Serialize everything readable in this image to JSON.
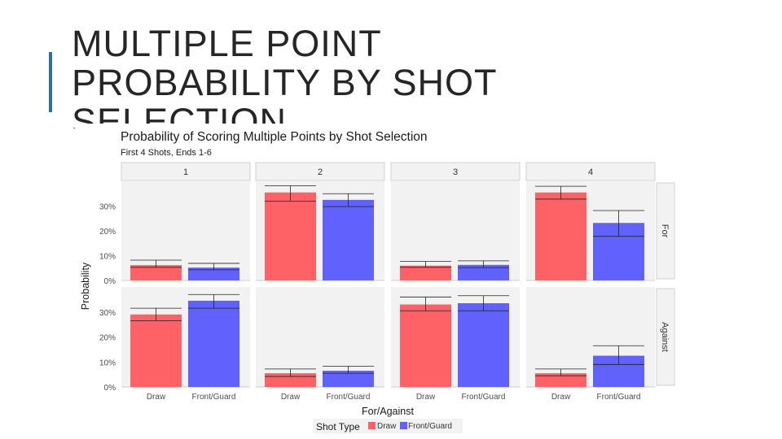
{
  "slide": {
    "title": "MULTIPLE POINT PROBABILITY BY SHOT SELECTION"
  },
  "colors": {
    "accent": "#2a6fa8",
    "draw": "#fe6266",
    "front_guard": "#6161fd",
    "panel_bg": "#f2f2f2",
    "strip_bg": "#f2f2f2"
  },
  "chart_data": {
    "type": "bar",
    "title": "Probability of Scoring Multiple Points by Shot Selection",
    "subtitle": "First 4 Shots, Ends 1-6",
    "xlabel": "For/Against",
    "ylabel": "Probability",
    "ylim": [
      0,
      0.4
    ],
    "y_ticks": [
      "0%",
      "10%",
      "20%",
      "30%"
    ],
    "categories": [
      "Draw",
      "Front/Guard"
    ],
    "facet_columns": [
      "1",
      "2",
      "3",
      "4"
    ],
    "facet_rows": [
      "For",
      "Against"
    ],
    "legend": {
      "title": "Shot Type",
      "position": "bottom",
      "entries": [
        "Draw",
        "Front/Guard"
      ]
    },
    "panels": [
      {
        "col": "1",
        "row": "For",
        "values": [
          0.062,
          0.052
        ],
        "error_low": [
          0.053,
          0.043
        ],
        "error_high": [
          0.082,
          0.069
        ]
      },
      {
        "col": "2",
        "row": "For",
        "values": [
          0.355,
          0.325
        ],
        "error_low": [
          0.32,
          0.298
        ],
        "error_high": [
          0.382,
          0.35
        ]
      },
      {
        "col": "3",
        "row": "For",
        "values": [
          0.06,
          0.063
        ],
        "error_low": [
          0.053,
          0.052
        ],
        "error_high": [
          0.077,
          0.079
        ]
      },
      {
        "col": "4",
        "row": "For",
        "values": [
          0.355,
          0.232
        ],
        "error_low": [
          0.328,
          0.178
        ],
        "error_high": [
          0.38,
          0.282
        ]
      },
      {
        "col": "1",
        "row": "Against",
        "values": [
          0.29,
          0.345
        ],
        "error_low": [
          0.265,
          0.315
        ],
        "error_high": [
          0.315,
          0.37
        ]
      },
      {
        "col": "2",
        "row": "Against",
        "values": [
          0.055,
          0.065
        ],
        "error_low": [
          0.042,
          0.055
        ],
        "error_high": [
          0.072,
          0.083
        ]
      },
      {
        "col": "3",
        "row": "Against",
        "values": [
          0.33,
          0.335
        ],
        "error_low": [
          0.305,
          0.305
        ],
        "error_high": [
          0.36,
          0.365
        ]
      },
      {
        "col": "4",
        "row": "Against",
        "values": [
          0.055,
          0.125
        ],
        "error_low": [
          0.045,
          0.09
        ],
        "error_high": [
          0.072,
          0.165
        ]
      }
    ]
  }
}
